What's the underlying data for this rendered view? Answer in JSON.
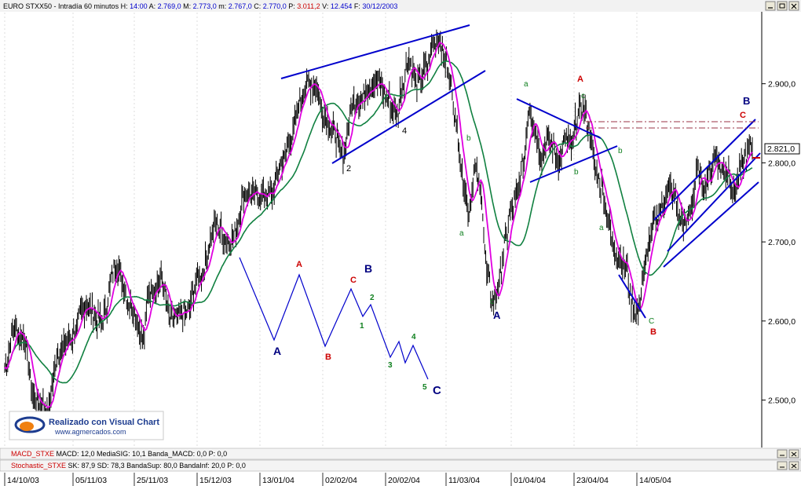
{
  "header": {
    "symbol": "EURO STXX50",
    "timeframe": "Intradía 60 minutos",
    "items": [
      {
        "label": "H:",
        "value": "14:00",
        "color": "#0000cc"
      },
      {
        "label": "A:",
        "value": "2.769,0",
        "color": "#0000cc"
      },
      {
        "label": "M:",
        "value": "2.773,0",
        "color": "#0000cc"
      },
      {
        "label": "m:",
        "value": "2.767,0",
        "color": "#0000cc"
      },
      {
        "label": "C:",
        "value": "2.770,0",
        "color": "#0000cc"
      },
      {
        "label": "P:",
        "value": "3.011,2",
        "color": "#cc0000"
      },
      {
        "label": "V:",
        "value": "12.454",
        "color": "#0000cc"
      },
      {
        "label": "F:",
        "value": "30/12/2003",
        "color": "#0000cc"
      }
    ]
  },
  "price_label": "2.821,0",
  "logo": {
    "text": "Realizado con Visual Chart",
    "url": "www.agmercados.com"
  },
  "macd": {
    "name": "MACD_STXE",
    "items": [
      {
        "label": "MACD:",
        "value": "12,0"
      },
      {
        "label": "MediaSIG:",
        "value": "10,1"
      },
      {
        "label": "Banda_MACD:",
        "value": "0,0"
      },
      {
        "label": "P:",
        "value": "0,0"
      }
    ]
  },
  "stoch": {
    "name": "Stochastic_STXE",
    "items": [
      {
        "label": "SK:",
        "value": "87,9"
      },
      {
        "label": "SD:",
        "value": "78,3"
      },
      {
        "label": "BandaSup:",
        "value": "80,0"
      },
      {
        "label": "BandaInf:",
        "value": "20,0"
      },
      {
        "label": "P:",
        "value": "0,0"
      }
    ]
  },
  "colors": {
    "price": "#000000",
    "fast_ma": "#e000e0",
    "slow_ma": "#108040",
    "trend": "#0000cc",
    "resistance": "#993344"
  },
  "chart_data": {
    "type": "line",
    "ylim": [
      2440,
      2990
    ],
    "yticks": [
      {
        "value": 2900,
        "label": "2.900,0"
      },
      {
        "value": 2800,
        "label": "2.800,0"
      },
      {
        "value": 2700,
        "label": "2.700,0"
      },
      {
        "value": 2600,
        "label": "2.600,0"
      },
      {
        "value": 2500,
        "label": "2.500,0"
      }
    ],
    "xticks": [
      "14/10/03",
      "05/11/03",
      "25/11/03",
      "15/12/03",
      "13/01/04",
      "02/02/04",
      "20/02/04",
      "11/03/04",
      "01/04/04",
      "23/04/04",
      "14/05/04"
    ],
    "price_keypoints": [
      [
        0,
        2540
      ],
      [
        3,
        2590
      ],
      [
        6,
        2580
      ],
      [
        10,
        2500
      ],
      [
        14,
        2490
      ],
      [
        18,
        2560
      ],
      [
        22,
        2580
      ],
      [
        27,
        2620
      ],
      [
        32,
        2600
      ],
      [
        37,
        2670
      ],
      [
        42,
        2620
      ],
      [
        46,
        2580
      ],
      [
        48,
        2640
      ],
      [
        52,
        2650
      ],
      [
        55,
        2600
      ],
      [
        60,
        2610
      ],
      [
        65,
        2660
      ],
      [
        70,
        2720
      ],
      [
        75,
        2700
      ],
      [
        80,
        2760
      ],
      [
        88,
        2760
      ],
      [
        92,
        2800
      ],
      [
        95,
        2830
      ],
      [
        98,
        2880
      ],
      [
        100,
        2900
      ],
      [
        103,
        2900
      ],
      [
        106,
        2860
      ],
      [
        109,
        2840
      ],
      [
        112,
        2810
      ],
      [
        116,
        2880
      ],
      [
        118,
        2880
      ],
      [
        121,
        2900
      ],
      [
        124,
        2900
      ],
      [
        127,
        2880
      ],
      [
        130,
        2860
      ],
      [
        132,
        2900
      ],
      [
        134,
        2930
      ],
      [
        137,
        2900
      ],
      [
        140,
        2920
      ],
      [
        142,
        2950
      ],
      [
        144,
        2960
      ],
      [
        146,
        2930
      ],
      [
        148,
        2900
      ],
      [
        150,
        2840
      ],
      [
        152,
        2780
      ],
      [
        154,
        2740
      ],
      [
        156,
        2790
      ],
      [
        158,
        2760
      ],
      [
        160,
        2660
      ],
      [
        162,
        2620
      ],
      [
        164,
        2650
      ],
      [
        166,
        2700
      ],
      [
        168,
        2740
      ],
      [
        170,
        2760
      ],
      [
        172,
        2800
      ],
      [
        174,
        2870
      ],
      [
        176,
        2840
      ],
      [
        178,
        2810
      ],
      [
        180,
        2830
      ],
      [
        182,
        2820
      ],
      [
        184,
        2800
      ],
      [
        186,
        2830
      ],
      [
        188,
        2820
      ],
      [
        190,
        2860
      ],
      [
        192,
        2870
      ],
      [
        194,
        2840
      ],
      [
        196,
        2790
      ],
      [
        198,
        2770
      ],
      [
        200,
        2730
      ],
      [
        202,
        2690
      ],
      [
        204,
        2680
      ],
      [
        206,
        2670
      ],
      [
        208,
        2620
      ],
      [
        210,
        2610
      ],
      [
        212,
        2660
      ],
      [
        214,
        2700
      ],
      [
        216,
        2730
      ],
      [
        218,
        2740
      ],
      [
        220,
        2770
      ],
      [
        222,
        2760
      ],
      [
        224,
        2730
      ],
      [
        226,
        2720
      ],
      [
        228,
        2750
      ],
      [
        230,
        2790
      ],
      [
        232,
        2770
      ],
      [
        234,
        2790
      ],
      [
        236,
        2810
      ],
      [
        238,
        2790
      ],
      [
        240,
        2790
      ],
      [
        242,
        2760
      ],
      [
        244,
        2790
      ],
      [
        246,
        2810
      ],
      [
        248,
        2820
      ]
    ],
    "elliott_waves": [
      {
        "label": "A",
        "color": "#000080"
      },
      {
        "label": "A",
        "color": "#cc0000"
      },
      {
        "label": "B",
        "color": "#cc0000"
      },
      {
        "label": "C",
        "color": "#cc0000"
      },
      {
        "label": "B",
        "color": "#000080"
      },
      {
        "label": "1",
        "color": "#108020"
      },
      {
        "label": "2",
        "color": "#108020"
      },
      {
        "label": "3",
        "color": "#108020"
      },
      {
        "label": "4",
        "color": "#108020"
      },
      {
        "label": "5",
        "color": "#108020"
      },
      {
        "label": "C",
        "color": "#000080"
      }
    ],
    "wave_labels": [
      {
        "text": "2",
        "color": "#000000"
      },
      {
        "text": "4",
        "color": "#000000"
      },
      {
        "text": "a",
        "color": "#108020"
      },
      {
        "text": "b",
        "color": "#108020"
      },
      {
        "text": "c",
        "color": "#108020"
      },
      {
        "text": "A",
        "color": "#000080"
      },
      {
        "text": "a",
        "color": "#108020"
      },
      {
        "text": "A",
        "color": "#cc0000"
      },
      {
        "text": "c",
        "color": "#108020"
      },
      {
        "text": "b",
        "color": "#108020"
      },
      {
        "text": "b",
        "color": "#108020"
      },
      {
        "text": "a",
        "color": "#108020"
      },
      {
        "text": "C",
        "color": "#108020"
      },
      {
        "text": "B",
        "color": "#cc0000"
      },
      {
        "text": "B",
        "color": "#000080"
      },
      {
        "text": "C",
        "color": "#cc0000"
      }
    ]
  }
}
